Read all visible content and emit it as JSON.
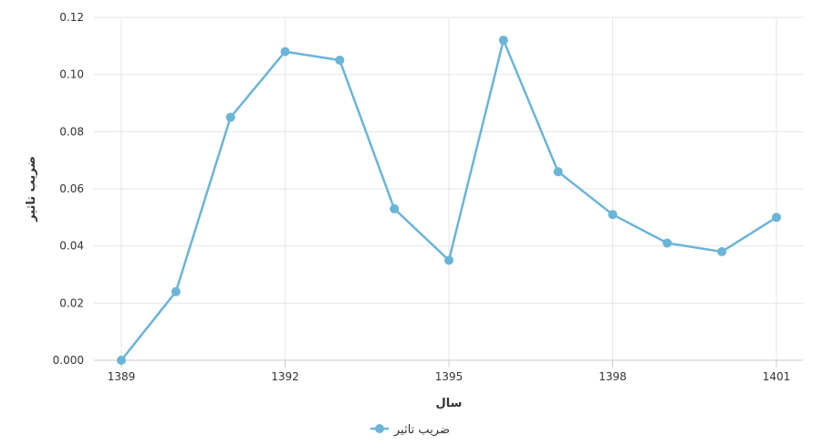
{
  "chart_data": {
    "type": "line",
    "x": [
      1389,
      1390,
      1391,
      1392,
      1393,
      1394,
      1395,
      1396,
      1397,
      1398,
      1399,
      1400,
      1401
    ],
    "series": [
      {
        "name": "ضریب تاثیر",
        "color": "#6ab4d8",
        "values": [
          0.0,
          0.024,
          0.085,
          0.108,
          0.105,
          0.053,
          0.035,
          0.112,
          0.066,
          0.051,
          0.041,
          0.038,
          0.05
        ]
      }
    ],
    "xlabel": "سال",
    "ylabel": "ضریب تاثیر",
    "x_ticks": [
      "1389",
      "1392",
      "1395",
      "1398",
      "1401"
    ],
    "y_ticks": [
      "0.000",
      "0.02",
      "0.04",
      "0.06",
      "0.08",
      "0.10",
      "0.12"
    ],
    "xlim": [
      1389,
      1401
    ],
    "ylim": [
      0,
      0.12
    ],
    "grid": true,
    "legend": "bottom-center"
  }
}
